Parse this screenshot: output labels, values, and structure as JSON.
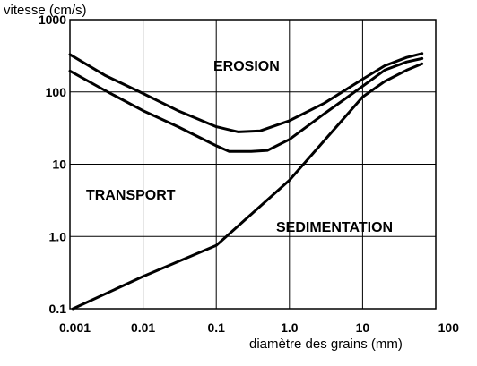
{
  "chart_data": {
    "type": "line",
    "x_scale": "log",
    "y_scale": "log",
    "xlim": [
      0.001,
      100
    ],
    "ylim": [
      0.1,
      1000
    ],
    "grid": true,
    "xlabel": "diamètre des grains (mm)",
    "ylabel": "vitesse (cm/s)",
    "x_ticks": [
      "0.001",
      "0.01",
      "0.1",
      "1.0",
      "10",
      "100"
    ],
    "y_ticks": [
      "1000",
      "100",
      "10",
      "1.0",
      "0.1"
    ],
    "regions": [
      "EROSION",
      "TRANSPORT",
      "SEDIMENTATION"
    ],
    "series": [
      {
        "x": [
          0.001,
          0.003,
          0.01,
          0.03,
          0.1,
          0.2,
          0.4,
          1,
          3,
          10,
          20,
          40,
          65
        ],
        "y": [
          330,
          170,
          95,
          55,
          33,
          28,
          29,
          40,
          70,
          150,
          230,
          300,
          340
        ]
      },
      {
        "x": [
          0.001,
          0.003,
          0.01,
          0.03,
          0.1,
          0.15,
          0.3,
          0.5,
          1,
          3,
          10,
          20,
          40,
          65
        ],
        "y": [
          195,
          105,
          55,
          33,
          18,
          15,
          15,
          15.5,
          22,
          50,
          120,
          200,
          260,
          290
        ]
      },
      {
        "x": [
          0.0011,
          0.01,
          0.1,
          1,
          10,
          20,
          40,
          65
        ],
        "y": [
          0.1,
          0.28,
          0.75,
          6,
          85,
          140,
          200,
          245
        ]
      }
    ]
  }
}
